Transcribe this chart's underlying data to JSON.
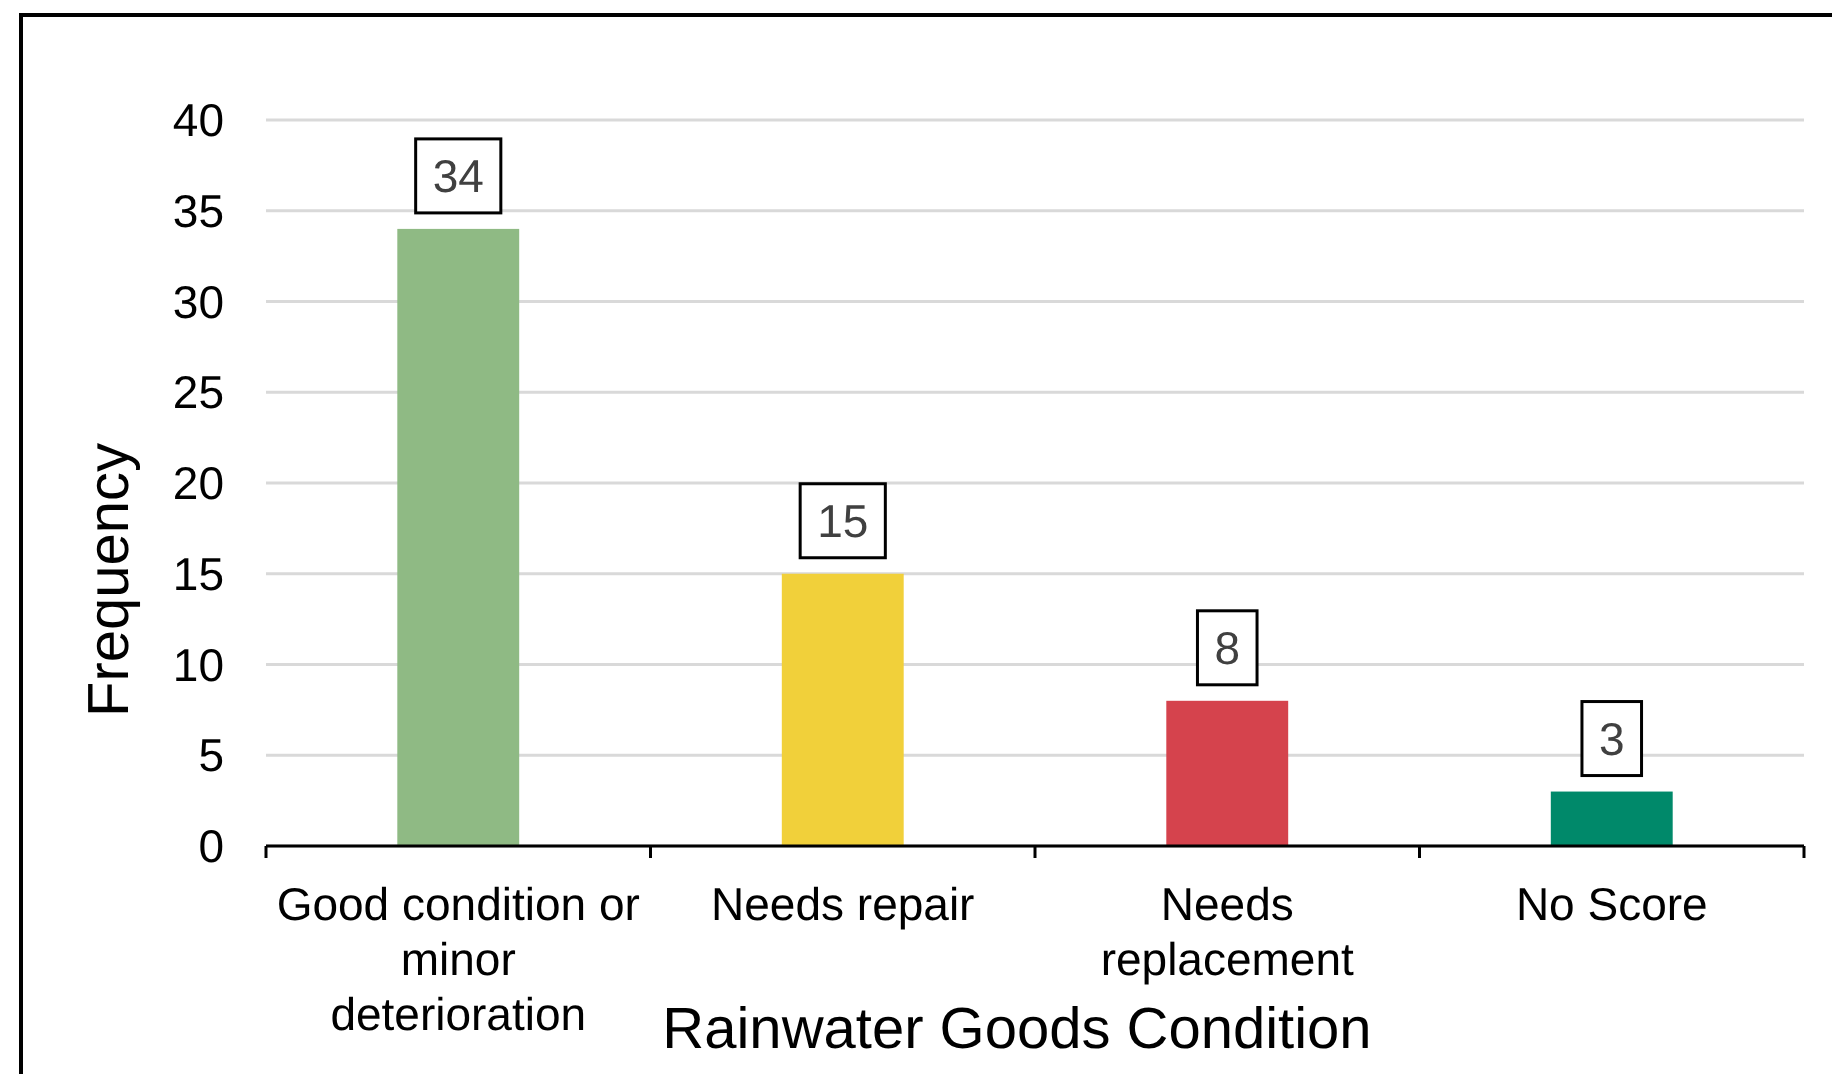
{
  "chart_data": {
    "type": "bar",
    "xlabel": "Rainwater Goods Condition",
    "ylabel": "Frequency",
    "categories": [
      "Good condition or minor deterioration",
      "Needs repair",
      "Needs replacement",
      "No Score"
    ],
    "values": [
      34,
      15,
      8,
      3
    ],
    "colors": [
      "#8fba84",
      "#f1d03a",
      "#d5434d",
      "#00896a"
    ],
    "ylim": [
      0,
      40
    ],
    "yticks": [
      0,
      5,
      10,
      15,
      20,
      25,
      30,
      35,
      40
    ],
    "grid": "y",
    "data_labels": true
  }
}
